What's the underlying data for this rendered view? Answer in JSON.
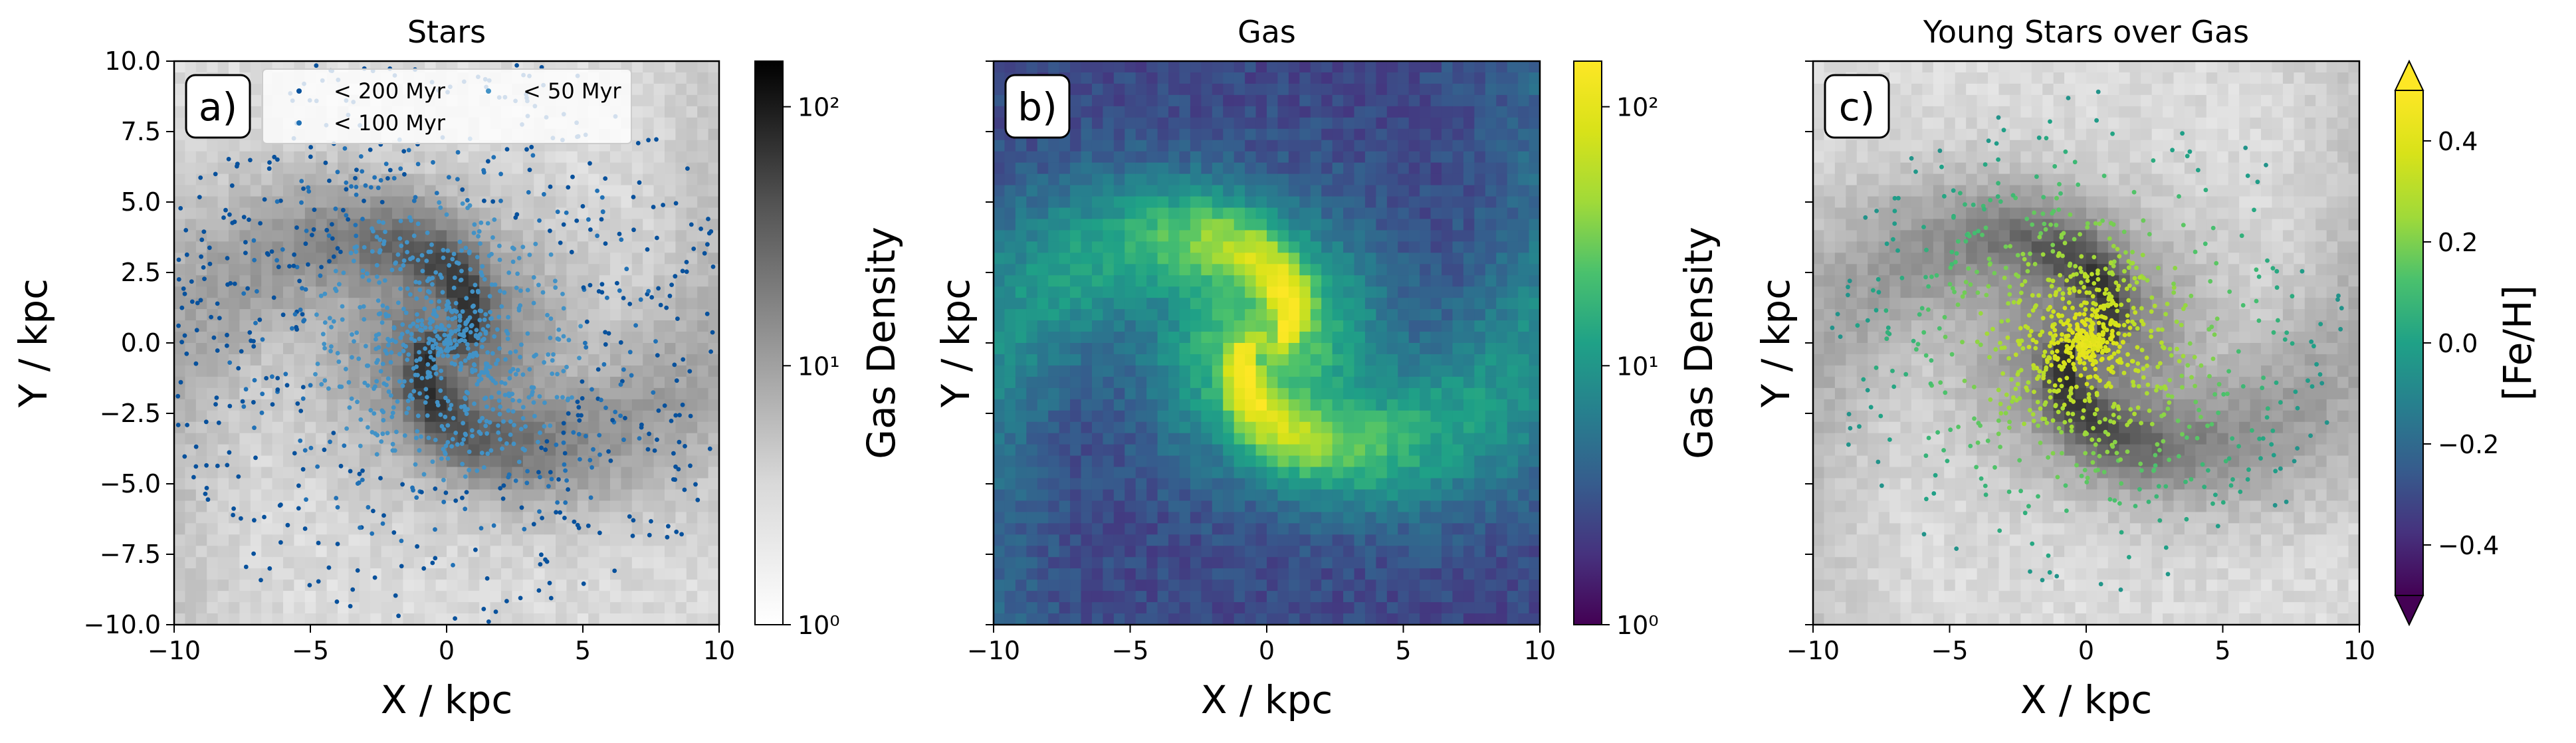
{
  "chart_data": [
    {
      "type": "heatmap",
      "panel_label": "a)",
      "title": "Stars",
      "xlabel": "X / kpc",
      "ylabel": "Y / kpc",
      "xlim": [
        -10,
        10
      ],
      "ylim": [
        -10,
        10
      ],
      "xticks": [
        "−10",
        "−5",
        "0",
        "5",
        "10"
      ],
      "yticks": [
        "−10.0",
        "−7.5",
        "−5.0",
        "−2.5",
        "0.0",
        "2.5",
        "5.0",
        "7.5",
        "10.0"
      ],
      "background": {
        "quantity": "Gas Density",
        "colormap": "Greys",
        "scale": "log",
        "range": [
          1,
          150
        ]
      },
      "overlay": {
        "type": "scatter",
        "series": [
          {
            "name": "< 200 Myr",
            "color": "#08519c"
          },
          {
            "name": "< 100 Myr",
            "color": "#2171b5"
          },
          {
            "name": "< 50 Myr",
            "color": "#4292c6"
          }
        ]
      },
      "legend_position": "top",
      "colorbar": {
        "label": "Gas Density",
        "scale": "log",
        "ticks": [
          "10⁰",
          "10¹",
          "10²"
        ],
        "range": [
          1,
          150
        ],
        "colormap": "Greys"
      }
    },
    {
      "type": "heatmap",
      "panel_label": "b)",
      "title": "Gas",
      "xlabel": "X / kpc",
      "ylabel": "Y / kpc",
      "xlim": [
        -10,
        10
      ],
      "ylim": [
        -10,
        10
      ],
      "xticks": [
        "−10",
        "−5",
        "0",
        "5",
        "10"
      ],
      "background": {
        "quantity": "Gas Density",
        "colormap": "viridis",
        "scale": "log",
        "range": [
          1,
          150
        ]
      },
      "colorbar": {
        "label": "Gas Density",
        "scale": "log",
        "ticks": [
          "10⁰",
          "10¹",
          "10²"
        ],
        "range": [
          1,
          150
        ],
        "colormap": "viridis"
      }
    },
    {
      "type": "heatmap",
      "panel_label": "c)",
      "title": "Young Stars over Gas",
      "xlabel": "X / kpc",
      "ylabel": "Y / kpc",
      "xlim": [
        -10,
        10
      ],
      "ylim": [
        -10,
        10
      ],
      "xticks": [
        "−10",
        "−5",
        "0",
        "5",
        "10"
      ],
      "background": {
        "quantity": "Gas Density",
        "colormap": "Greys",
        "scale": "log"
      },
      "overlay": {
        "type": "scatter",
        "color_quantity": "[Fe/H]",
        "colormap": "viridis"
      },
      "colorbar": {
        "label": "[Fe/H]",
        "ticks": [
          "−0.4",
          "−0.2",
          "0.0",
          "0.2",
          "0.4"
        ],
        "range": [
          -0.5,
          0.5
        ],
        "extend": "both",
        "colormap": "viridis"
      }
    }
  ]
}
